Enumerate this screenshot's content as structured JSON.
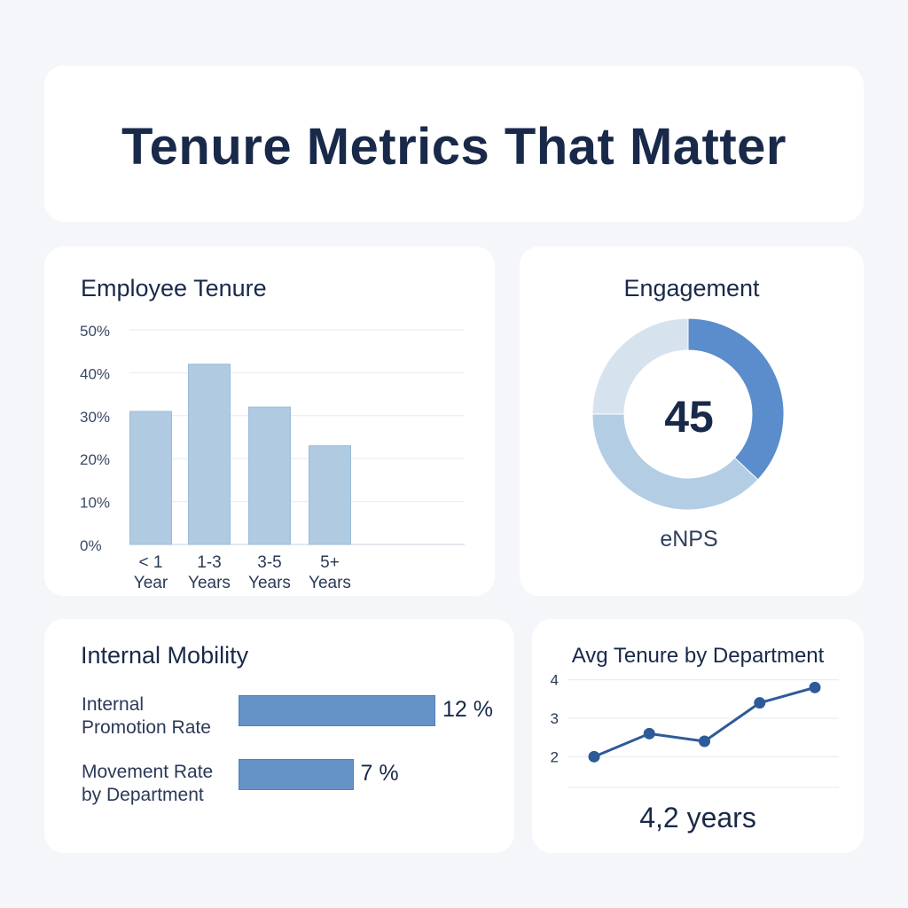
{
  "title": "Tenure Metrics That Matter",
  "colors": {
    "background": "#f4f6f9",
    "card": "#ffffff",
    "text": "#19294a",
    "bar_light": "#b0cae2",
    "accent": "#6593c8",
    "line": "#2d5b9a"
  },
  "tenure_card": {
    "title": "Employee Tenure"
  },
  "engagement_card": {
    "title": "Engagement",
    "value": "45",
    "label": "eNPS"
  },
  "mobility_card": {
    "title": "Internal Mobility",
    "rows": [
      {
        "label_line1": "Internal",
        "label_line2": "Promotion Rate",
        "value_text": "12 %",
        "value": 12
      },
      {
        "label_line1": "Movement Rate",
        "label_line2": "by Department",
        "value_text": "7 %",
        "value": 7
      }
    ]
  },
  "dept_card": {
    "title": "Avg Tenure by Department",
    "summary": "4,2 years"
  },
  "chart_data": [
    {
      "type": "bar",
      "title": "Employee Tenure",
      "categories": [
        {
          "line1": "< 1",
          "line2": "Year"
        },
        {
          "line1": "1-3",
          "line2": "Years"
        },
        {
          "line1": "3-5",
          "line2": "Years"
        },
        {
          "line1": "5+",
          "line2": "Years"
        }
      ],
      "values": [
        31,
        42,
        32,
        23
      ],
      "ylim": [
        0,
        50
      ],
      "yticks": [
        "0%",
        "10%",
        "20%",
        "30%",
        "40%",
        "50%"
      ],
      "grid": true
    },
    {
      "type": "pie",
      "title": "Engagement",
      "center_value": "45",
      "label": "eNPS",
      "slices": [
        {
          "value": 37,
          "color": "#5b8ccb"
        },
        {
          "value": 38,
          "color": "#b3cde4"
        },
        {
          "value": 25,
          "color": "#d6e3ef"
        }
      ]
    },
    {
      "type": "bar",
      "title": "Internal Mobility",
      "categories": [
        "Internal Promotion Rate",
        "Movement Rate by Department"
      ],
      "values": [
        12,
        7
      ],
      "orientation": "horizontal"
    },
    {
      "type": "line",
      "title": "Avg Tenure by Department",
      "x": [
        1,
        2,
        3,
        4,
        5
      ],
      "y": [
        2.0,
        2.6,
        2.4,
        3.4,
        3.8
      ],
      "yticks": [
        "2",
        "3",
        "4"
      ],
      "ylim": [
        1.2,
        4.2
      ],
      "grid": true
    }
  ]
}
